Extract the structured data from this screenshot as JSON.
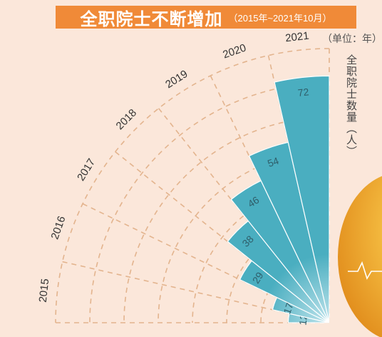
{
  "title": {
    "main": "全职院士不断增加",
    "sub": "（2015年~2021年10月）"
  },
  "unit_label": "（单位：年）",
  "axis_title": "全职院士数量（人）",
  "colors": {
    "background": "#fbe7da",
    "title_bg": "#f08a38",
    "bar_fill": "#4aaec0",
    "bar_fill_light": "#bfe4ec",
    "grid": "#e3b48e",
    "bulb": "#f2b63c"
  },
  "chart_data": {
    "type": "bar",
    "layout": "radial-polar",
    "title": "全职院士不断增加",
    "subtitle": "（2015年~2021年10月）",
    "ylabel": "全职院士数量（人）",
    "unit": "（单位：年）",
    "categories": [
      "2015",
      "2016",
      "2017",
      "2018",
      "2019",
      "2020",
      "2021"
    ],
    "series": [
      {
        "values": [
          12,
          17,
          29,
          38,
          46,
          54,
          72
        ]
      }
    ],
    "ylim": [
      0,
      80
    ],
    "grid": true
  }
}
